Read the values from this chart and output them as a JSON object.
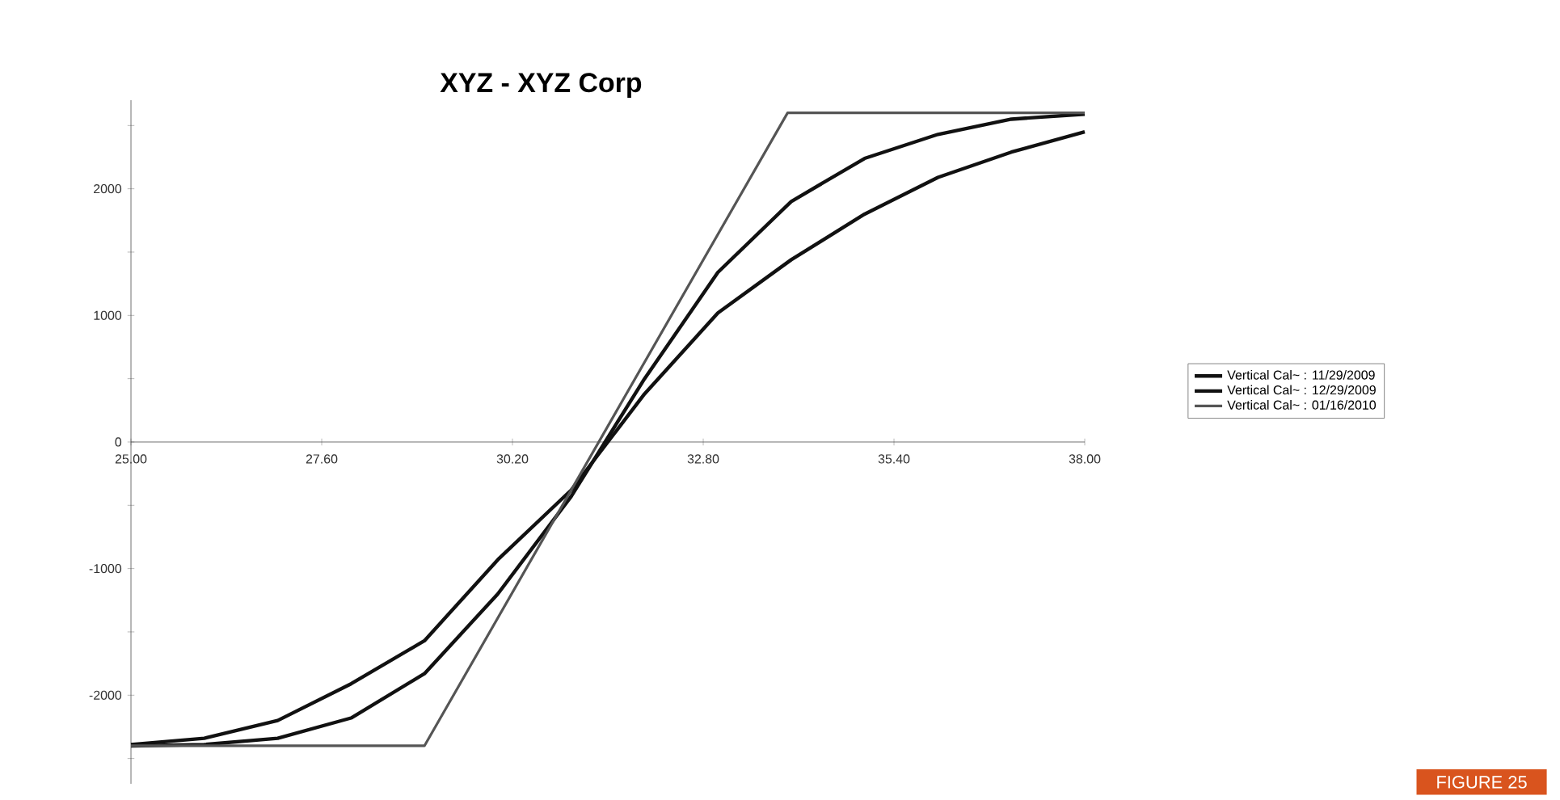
{
  "chart_data": {
    "type": "line",
    "title": "XYZ - XYZ Corp",
    "x": [
      25,
      26,
      27,
      28,
      29,
      30,
      31,
      32,
      33,
      34,
      35,
      36,
      37,
      38
    ],
    "series": [
      {
        "name": "Vertical Cal~ : 11/29/2009",
        "color": "#111111",
        "values": [
          -2390,
          -2340,
          -2200,
          -1910,
          -1570,
          -930,
          -380,
          380,
          1020,
          1440,
          1800,
          2090,
          2290,
          2450
        ]
      },
      {
        "name": "Vertical Cal~ : 12/29/2009",
        "color": "#111111",
        "values": [
          -2400,
          -2390,
          -2340,
          -2180,
          -1830,
          -1200,
          -430,
          500,
          1340,
          1900,
          2240,
          2430,
          2550,
          2590
        ]
      },
      {
        "name": "Vertical Cal~ : 01/16/2010",
        "color": "#555555",
        "x": [
          25,
          29,
          33.95,
          38
        ],
        "values": [
          -2400,
          -2400,
          2600,
          2600
        ]
      }
    ],
    "xlim": [
      25,
      38
    ],
    "ylim": [
      -2700,
      2700
    ],
    "xticks": [
      {
        "value": 25,
        "label": "25.00"
      },
      {
        "value": 27.6,
        "label": "27.60"
      },
      {
        "value": 30.2,
        "label": "30.20"
      },
      {
        "value": 32.8,
        "label": "32.80"
      },
      {
        "value": 35.4,
        "label": "35.40"
      },
      {
        "value": 38,
        "label": "38.00"
      }
    ],
    "yticks": [
      {
        "value": -2500,
        "label": null
      },
      -2000,
      {
        "value": -1500,
        "label": null
      },
      -1000,
      {
        "value": -500,
        "label": null
      },
      0,
      {
        "value": 500,
        "label": null
      },
      1000,
      {
        "value": 1500,
        "label": null
      },
      2000,
      {
        "value": 2500,
        "label": null
      }
    ],
    "legend": "right",
    "marker": "none",
    "line_style": "solid",
    "annotations": [
      "FIGURE 25"
    ]
  }
}
